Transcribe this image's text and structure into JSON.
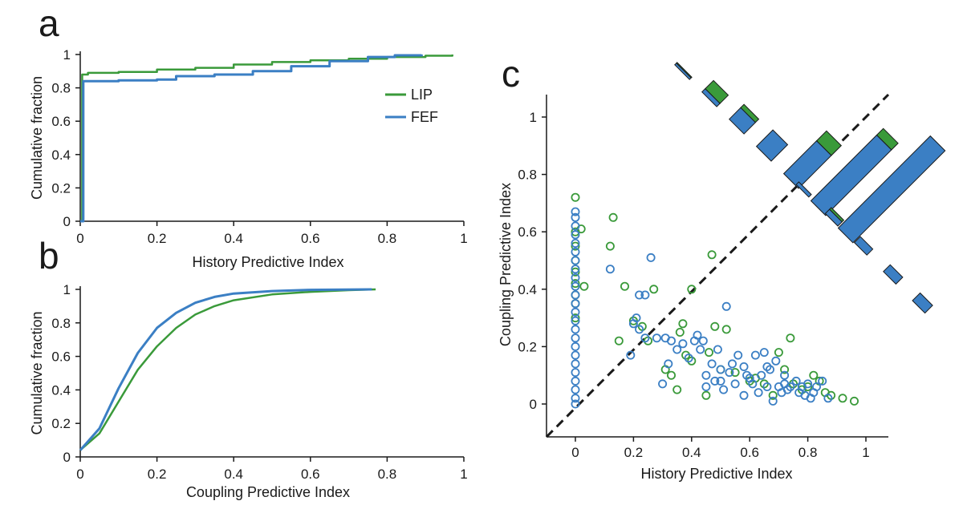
{
  "colors": {
    "LIP": "#3a9a3a",
    "FEF": "#3b7fc4",
    "axis": "#1a1a1a"
  },
  "panels": {
    "a": {
      "letter": "a"
    },
    "b": {
      "letter": "b"
    },
    "c": {
      "letter": "c"
    }
  },
  "chart_data": [
    {
      "id": "a",
      "type": "line",
      "xlabel": "History Predictive Index",
      "ylabel": "Cumulative fraction",
      "xlim": [
        0,
        1
      ],
      "ylim": [
        0,
        1
      ],
      "xticks": [
        0,
        0.2,
        0.4,
        0.6,
        0.8,
        1
      ],
      "xtick_labels": [
        "0",
        "0.2",
        "0.4",
        "0.6",
        "0.8",
        "1"
      ],
      "yticks": [
        0,
        0.2,
        0.4,
        0.6,
        0.8,
        1
      ],
      "ytick_labels": [
        "0",
        "0.2",
        "0.4",
        "0.6",
        "0.8",
        "1"
      ],
      "legend": {
        "position": "right",
        "entries": [
          "LIP",
          "FEF"
        ]
      },
      "series": [
        {
          "name": "LIP",
          "color": "#3a9a3a",
          "points": [
            [
              0,
              0
            ],
            [
              0.005,
              0.88
            ],
            [
              0.02,
              0.89
            ],
            [
              0.1,
              0.895
            ],
            [
              0.2,
              0.91
            ],
            [
              0.3,
              0.92
            ],
            [
              0.4,
              0.94
            ],
            [
              0.5,
              0.955
            ],
            [
              0.6,
              0.965
            ],
            [
              0.7,
              0.975
            ],
            [
              0.8,
              0.985
            ],
            [
              0.9,
              0.993
            ],
            [
              0.97,
              1
            ]
          ]
        },
        {
          "name": "FEF",
          "color": "#3b7fc4",
          "points": [
            [
              0,
              0
            ],
            [
              0.008,
              0.84
            ],
            [
              0.1,
              0.845
            ],
            [
              0.2,
              0.85
            ],
            [
              0.25,
              0.87
            ],
            [
              0.35,
              0.88
            ],
            [
              0.45,
              0.9
            ],
            [
              0.55,
              0.93
            ],
            [
              0.65,
              0.96
            ],
            [
              0.75,
              0.985
            ],
            [
              0.82,
              0.995
            ],
            [
              0.89,
              1
            ]
          ]
        }
      ]
    },
    {
      "id": "b",
      "type": "line",
      "xlabel": "Coupling Predictive Index",
      "ylabel": "Cumulative fraction",
      "xlim": [
        0,
        1
      ],
      "ylim": [
        0,
        1
      ],
      "xticks": [
        0,
        0.2,
        0.4,
        0.6,
        0.8,
        1
      ],
      "xtick_labels": [
        "0",
        "0.2",
        "0.4",
        "0.6",
        "0.8",
        "1"
      ],
      "yticks": [
        0,
        0.2,
        0.4,
        0.6,
        0.8,
        1
      ],
      "ytick_labels": [
        "0",
        "0.2",
        "0.4",
        "0.6",
        "0.8",
        "1"
      ],
      "series": [
        {
          "name": "LIP",
          "color": "#3a9a3a",
          "points": [
            [
              0,
              0.04
            ],
            [
              0.05,
              0.14
            ],
            [
              0.1,
              0.33
            ],
            [
              0.15,
              0.52
            ],
            [
              0.2,
              0.66
            ],
            [
              0.25,
              0.77
            ],
            [
              0.3,
              0.85
            ],
            [
              0.35,
              0.9
            ],
            [
              0.4,
              0.935
            ],
            [
              0.5,
              0.97
            ],
            [
              0.6,
              0.985
            ],
            [
              0.7,
              0.995
            ],
            [
              0.77,
              1
            ]
          ]
        },
        {
          "name": "FEF",
          "color": "#3b7fc4",
          "points": [
            [
              0,
              0.04
            ],
            [
              0.05,
              0.17
            ],
            [
              0.1,
              0.41
            ],
            [
              0.15,
              0.62
            ],
            [
              0.2,
              0.77
            ],
            [
              0.25,
              0.86
            ],
            [
              0.3,
              0.92
            ],
            [
              0.35,
              0.955
            ],
            [
              0.4,
              0.975
            ],
            [
              0.5,
              0.99
            ],
            [
              0.6,
              0.997
            ],
            [
              0.76,
              1
            ]
          ]
        }
      ]
    },
    {
      "id": "c",
      "type": "scatter",
      "xlabel": "History Predictive Index",
      "ylabel": "Coupling Predictive Index",
      "xlim": [
        -0.1,
        1.07
      ],
      "ylim": [
        -0.1,
        1.07
      ],
      "xticks": [
        0,
        0.2,
        0.4,
        0.6,
        0.8,
        1
      ],
      "xtick_labels": [
        "0",
        "0.2",
        "0.4",
        "0.6",
        "0.8",
        "1"
      ],
      "yticks": [
        0,
        0.2,
        0.4,
        0.6,
        0.8,
        1
      ],
      "ytick_labels": [
        "0",
        "0.2",
        "0.4",
        "0.6",
        "0.8",
        "1"
      ],
      "diagonal": "dashed",
      "series": [
        {
          "name": "LIP",
          "color": "#3a9a3a",
          "points": [
            [
              0,
              0.72
            ],
            [
              0,
              0.6
            ],
            [
              0,
              0.55
            ],
            [
              0,
              0.5
            ],
            [
              0,
              0.46
            ],
            [
              0,
              0.42
            ],
            [
              0,
              0.38
            ],
            [
              0,
              0.35
            ],
            [
              0,
              0.3
            ],
            [
              0.02,
              0.61
            ],
            [
              0.03,
              0.41
            ],
            [
              0.13,
              0.65
            ],
            [
              0.12,
              0.55
            ],
            [
              0.17,
              0.41
            ],
            [
              0.2,
              0.29
            ],
            [
              0.23,
              0.27
            ],
            [
              0.27,
              0.4
            ],
            [
              0.4,
              0.4
            ],
            [
              0.47,
              0.52
            ],
            [
              0.15,
              0.22
            ],
            [
              0.25,
              0.22
            ],
            [
              0.31,
              0.12
            ],
            [
              0.33,
              0.1
            ],
            [
              0.35,
              0.05
            ],
            [
              0.36,
              0.25
            ],
            [
              0.37,
              0.28
            ],
            [
              0.38,
              0.17
            ],
            [
              0.4,
              0.15
            ],
            [
              0.46,
              0.18
            ],
            [
              0.48,
              0.27
            ],
            [
              0.52,
              0.26
            ],
            [
              0.45,
              0.03
            ],
            [
              0.5,
              0.12
            ],
            [
              0.55,
              0.11
            ],
            [
              0.6,
              0.08
            ],
            [
              0.65,
              0.07
            ],
            [
              0.68,
              0.03
            ],
            [
              0.7,
              0.18
            ],
            [
              0.72,
              0.12
            ],
            [
              0.74,
              0.23
            ],
            [
              0.75,
              0.07
            ],
            [
              0.8,
              0.06
            ],
            [
              0.82,
              0.1
            ],
            [
              0.84,
              0.08
            ],
            [
              0.88,
              0.03
            ],
            [
              0.92,
              0.02
            ],
            [
              0.96,
              0.01
            ],
            [
              0.62,
              0.09
            ],
            [
              0.78,
              0.05
            ],
            [
              0.86,
              0.04
            ]
          ]
        },
        {
          "name": "FEF",
          "color": "#3b7fc4",
          "points": [
            [
              0,
              0.67
            ],
            [
              0,
              0.65
            ],
            [
              0,
              0.62
            ],
            [
              0,
              0.59
            ],
            [
              0,
              0.56
            ],
            [
              0,
              0.53
            ],
            [
              0,
              0.5
            ],
            [
              0,
              0.47
            ],
            [
              0,
              0.44
            ],
            [
              0,
              0.41
            ],
            [
              0,
              0.38
            ],
            [
              0,
              0.35
            ],
            [
              0,
              0.32
            ],
            [
              0,
              0.29
            ],
            [
              0,
              0.26
            ],
            [
              0,
              0.23
            ],
            [
              0,
              0.2
            ],
            [
              0,
              0.17
            ],
            [
              0,
              0.14
            ],
            [
              0,
              0.11
            ],
            [
              0,
              0.08
            ],
            [
              0,
              0.05
            ],
            [
              0,
              0.02
            ],
            [
              0,
              0.0
            ],
            [
              0.12,
              0.47
            ],
            [
              0.19,
              0.17
            ],
            [
              0.2,
              0.28
            ],
            [
              0.21,
              0.3
            ],
            [
              0.22,
              0.38
            ],
            [
              0.24,
              0.38
            ],
            [
              0.26,
              0.51
            ],
            [
              0.22,
              0.26
            ],
            [
              0.24,
              0.23
            ],
            [
              0.28,
              0.23
            ],
            [
              0.3,
              0.07
            ],
            [
              0.31,
              0.23
            ],
            [
              0.32,
              0.14
            ],
            [
              0.33,
              0.22
            ],
            [
              0.35,
              0.19
            ],
            [
              0.37,
              0.21
            ],
            [
              0.39,
              0.16
            ],
            [
              0.41,
              0.22
            ],
            [
              0.42,
              0.24
            ],
            [
              0.43,
              0.19
            ],
            [
              0.44,
              0.22
            ],
            [
              0.45,
              0.1
            ],
            [
              0.45,
              0.06
            ],
            [
              0.47,
              0.14
            ],
            [
              0.48,
              0.08
            ],
            [
              0.49,
              0.19
            ],
            [
              0.5,
              0.12
            ],
            [
              0.5,
              0.08
            ],
            [
              0.51,
              0.05
            ],
            [
              0.52,
              0.34
            ],
            [
              0.53,
              0.11
            ],
            [
              0.54,
              0.14
            ],
            [
              0.55,
              0.07
            ],
            [
              0.56,
              0.17
            ],
            [
              0.58,
              0.13
            ],
            [
              0.59,
              0.1
            ],
            [
              0.6,
              0.09
            ],
            [
              0.61,
              0.07
            ],
            [
              0.62,
              0.17
            ],
            [
              0.63,
              0.04
            ],
            [
              0.64,
              0.1
            ],
            [
              0.65,
              0.18
            ],
            [
              0.66,
              0.06
            ],
            [
              0.67,
              0.12
            ],
            [
              0.68,
              0.01
            ],
            [
              0.69,
              0.15
            ],
            [
              0.7,
              0.06
            ],
            [
              0.71,
              0.04
            ],
            [
              0.72,
              0.07
            ],
            [
              0.73,
              0.05
            ],
            [
              0.74,
              0.06
            ],
            [
              0.76,
              0.08
            ],
            [
              0.77,
              0.04
            ],
            [
              0.78,
              0.06
            ],
            [
              0.79,
              0.03
            ],
            [
              0.8,
              0.07
            ],
            [
              0.81,
              0.02
            ],
            [
              0.82,
              0.04
            ],
            [
              0.83,
              0.06
            ],
            [
              0.85,
              0.08
            ],
            [
              0.87,
              0.02
            ],
            [
              0.58,
              0.03
            ],
            [
              0.66,
              0.13
            ],
            [
              0.72,
              0.1
            ]
          ]
        }
      ],
      "diagonal_histogram": {
        "bins_upper": [
          {
            "LIP": 0.02,
            "FEF": 0.05
          },
          {
            "LIP": 0.25,
            "FEF": 0.1
          },
          {
            "LIP": 0.1,
            "FEF": 0.35
          },
          {
            "LIP": 0.0,
            "FEF": 0.5
          },
          {
            "LIP": 0.3,
            "FEF": 1.0
          },
          {
            "LIP": 0.2,
            "FEF": 2.0
          },
          {
            "LIP": 0.0,
            "FEF": 2.8
          }
        ],
        "bins_lower": [
          {
            "LIP": 0.0,
            "FEF": 0.15
          },
          {
            "LIP": 0.1,
            "FEF": 0.25
          },
          {
            "LIP": 0.0,
            "FEF": 0.35
          },
          {
            "LIP": 0.0,
            "FEF": 0.4
          },
          {
            "LIP": 0.0,
            "FEF": 0.45
          }
        ]
      }
    }
  ]
}
